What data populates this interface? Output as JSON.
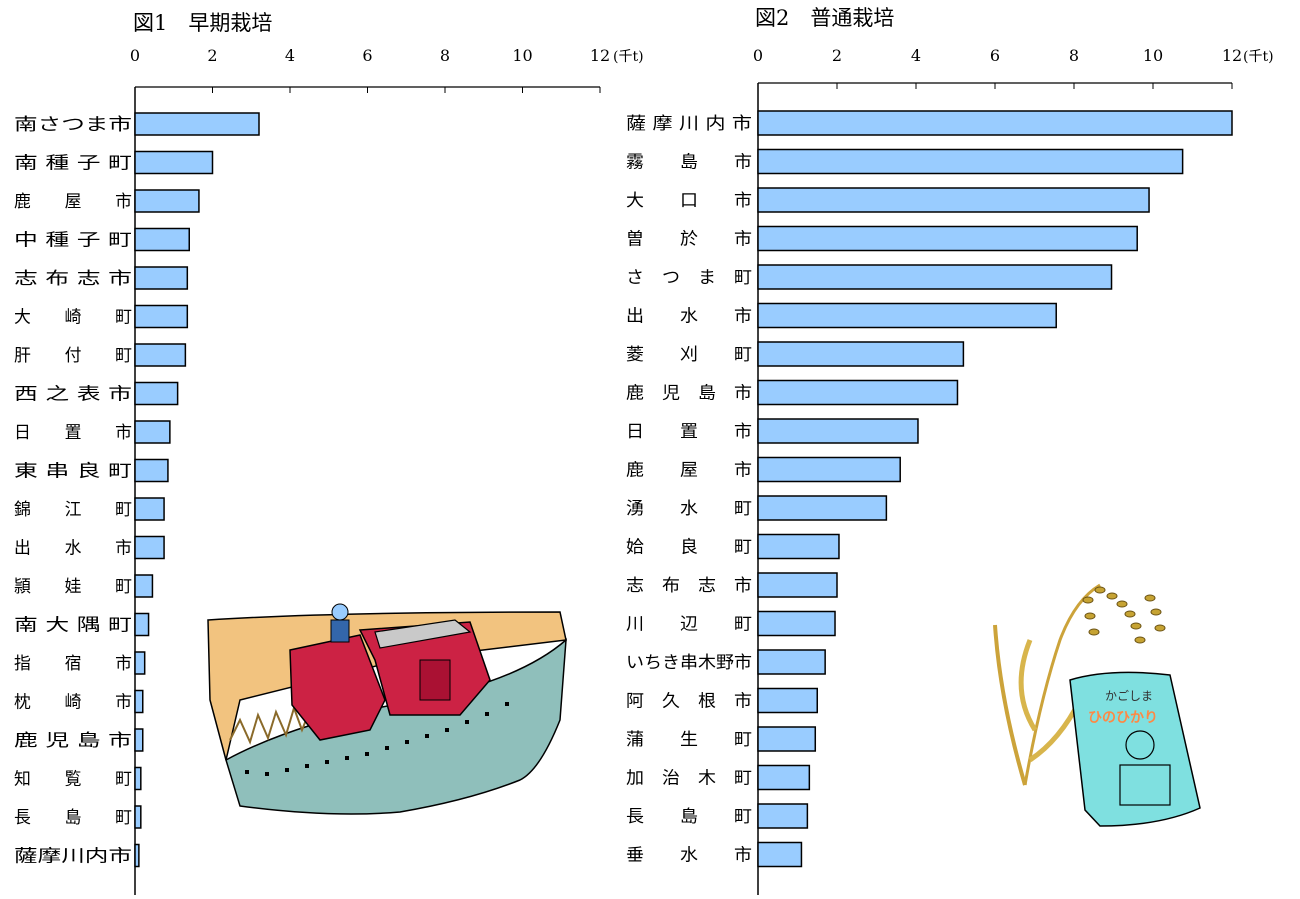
{
  "colors": {
    "bar_fill": "#99ccff",
    "bar_stroke": "#000000",
    "axis": "#000000"
  },
  "illustrations": [
    "combine-harvester-illustration",
    "rice-plant-and-bag-illustration"
  ],
  "bag_label": {
    "top": "かごしま",
    "brand": "ひのひかり"
  },
  "chart_data": [
    {
      "type": "bar",
      "orientation": "horizontal",
      "title": "図1　早期栽培",
      "unit": "(千t)",
      "xlim": [
        0,
        12
      ],
      "ticks": [
        0,
        2,
        4,
        6,
        8,
        10,
        12
      ],
      "tick_labels": [
        "0",
        "2",
        "4",
        "6",
        "8",
        "10",
        "12"
      ],
      "grid": false,
      "categories": [
        "南さつま市",
        "南種子町",
        "鹿屋市",
        "中種子町",
        "志布志市",
        "大崎町",
        "肝付町",
        "西之表市",
        "日置市",
        "東串良町",
        "錦江町",
        "出水市",
        "頴娃町",
        "南大隅町",
        "指宿市",
        "枕崎市",
        "鹿児島市",
        "知覧町",
        "長島町",
        "薩摩川内市"
      ],
      "category_labels": [
        "南さつま市",
        "南 種 子 町",
        "鹿　　屋　　市",
        "中 種 子 町",
        "志 布 志 市",
        "大　　崎　　町",
        "肝　　付　　町",
        "西 之 表 市",
        "日　　置　　市",
        "東 串 良 町",
        "錦　　江　　町",
        "出　　水　　市",
        "頴　　娃　　町",
        "南 大 隅 町",
        "指　　宿　　市",
        "枕　　崎　　市",
        "鹿 児 島 市",
        "知　　覧　　町",
        "長　　島　　町",
        "薩摩川内市"
      ],
      "values": [
        3.2,
        2.0,
        1.65,
        1.4,
        1.35,
        1.35,
        1.3,
        1.1,
        0.9,
        0.85,
        0.75,
        0.75,
        0.45,
        0.35,
        0.25,
        0.2,
        0.2,
        0.15,
        0.15,
        0.1
      ]
    },
    {
      "type": "bar",
      "orientation": "horizontal",
      "title": "図2　普通栽培",
      "unit": "(千t)",
      "xlim": [
        0,
        12
      ],
      "ticks": [
        0,
        2,
        4,
        6,
        8,
        10,
        12
      ],
      "tick_labels": [
        "0",
        "2",
        "4",
        "6",
        "8",
        "10",
        "12"
      ],
      "grid": false,
      "categories": [
        "薩摩川内市",
        "霧島市",
        "大口市",
        "曽於市",
        "さつま町",
        "出水市",
        "菱刈町",
        "鹿児島市",
        "日置市",
        "鹿屋市",
        "湧水町",
        "姶良町",
        "志布志市",
        "川辺町",
        "いちき串木野市",
        "阿久根市",
        "蒲生町",
        "加治木町",
        "長島町",
        "垂水市"
      ],
      "category_labels": [
        "薩 摩 川 内 市",
        "霧　　島　　市",
        "大　　口　　市",
        "曽　　於　　市",
        "さ　つ　ま　町",
        "出　　水　　市",
        "菱　　刈　　町",
        "鹿　児　島　市",
        "日　　置　　市",
        "鹿　　屋　　市",
        "湧　　水　　町",
        "姶　　良　　町",
        "志　布　志　市",
        "川　　辺　　町",
        "いちき串木野市",
        "阿　久　根　市",
        "蒲　　生　　町",
        "加　治　木　町",
        "長　　島　　町",
        "垂　　水　　市"
      ],
      "values": [
        12.0,
        10.75,
        9.9,
        9.6,
        8.95,
        7.55,
        5.2,
        5.05,
        4.05,
        3.6,
        3.25,
        2.05,
        2.0,
        1.95,
        1.7,
        1.5,
        1.45,
        1.3,
        1.25,
        1.1
      ]
    }
  ]
}
